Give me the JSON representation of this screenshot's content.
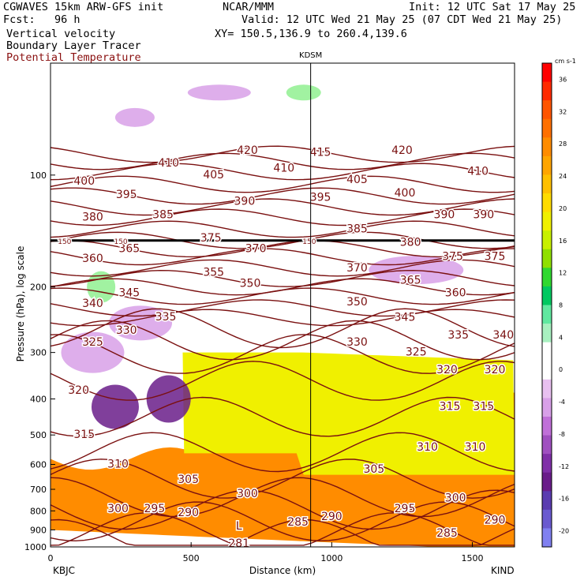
{
  "header": {
    "model": "CGWAVES 15km ARW-GFS init",
    "forecast": "Fcst:   96 h",
    "field1": "Vertical velocity",
    "field2": "Boundary Layer Tracer",
    "field3": "Potential Temperature",
    "center": "NCAR/MMM",
    "init": "Init: 12 UTC Sat 17 May 25",
    "valid": "Valid: 12 UTC Wed 21 May 25 (07 CDT Wed 21 May 25)",
    "xy": "XY= 150.5,136.9 to 260.4,139.6"
  },
  "colors": {
    "theta": "#7a1010",
    "tracer_low": "#ff8c00",
    "tracer_mid": "#f0f000",
    "upward": "#90f090",
    "downward": "#d8a0e8",
    "strong_down": "#6a1d8a"
  },
  "chart_data": {
    "type": "heatmap",
    "station_marker": "KDSM",
    "xlabel": "Distance (km)",
    "ylabel": "Pressure (hPa), log scale",
    "x_left_label": "KBJC",
    "x_right_label": "KIND",
    "xlim": [
      0,
      1650
    ],
    "xticks": [
      0,
      500,
      1000,
      1500
    ],
    "ylim": [
      1000,
      50
    ],
    "yscale": "log",
    "yticks": [
      100,
      200,
      300,
      400,
      500,
      600,
      700,
      800,
      900,
      1000
    ],
    "marker_x_km": 925,
    "colorbar": {
      "units": "cm s-1",
      "ticks": [
        36,
        32,
        28,
        24,
        20,
        16,
        12,
        8,
        4,
        0,
        -4,
        -8,
        -12,
        -16,
        -20
      ],
      "colors": [
        "#ff0000",
        "#ff2a00",
        "#ff5500",
        "#ff7000",
        "#ff8c00",
        "#ffa500",
        "#ffc000",
        "#ffdc00",
        "#f0f000",
        "#c8f000",
        "#90e000",
        "#30d830",
        "#00c860",
        "#60e8a0",
        "#a8f0c0",
        "#ffffff",
        "#ffffff",
        "#e8c0f0",
        "#d8a0e8",
        "#c070d8",
        "#a050c0",
        "#8030a8",
        "#6a1d8a",
        "#5a3cb0",
        "#6a5ad0",
        "#8080f0"
      ]
    },
    "isentropes": [
      {
        "value": 420,
        "p": 88
      },
      {
        "value": 415,
        "p": 92
      },
      {
        "value": 410,
        "p": 98
      },
      {
        "value": 405,
        "p": 106
      },
      {
        "value": 400,
        "p": 114
      },
      {
        "value": 395,
        "p": 122
      },
      {
        "value": 390,
        "p": 130
      },
      {
        "value": 385,
        "p": 140
      },
      {
        "value": 380,
        "p": 150
      },
      {
        "value": 375,
        "p": 158
      },
      {
        "value": 370,
        "p": 166
      },
      {
        "value": 365,
        "p": 178
      },
      {
        "value": 360,
        "p": 190
      },
      {
        "value": 355,
        "p": 200
      },
      {
        "value": 350,
        "p": 212
      },
      {
        "value": 345,
        "p": 228
      },
      {
        "value": 340,
        "p": 242
      },
      {
        "value": 335,
        "p": 260
      },
      {
        "value": 330,
        "p": 280
      },
      {
        "value": 325,
        "p": 305
      },
      {
        "value": 320,
        "p": 360
      },
      {
        "value": 315,
        "p": 450
      },
      {
        "value": 310,
        "p": 560
      },
      {
        "value": 305,
        "p": 660
      },
      {
        "value": 300,
        "p": 740
      },
      {
        "value": 295,
        "p": 800
      },
      {
        "value": 290,
        "p": 860
      },
      {
        "value": 285,
        "p": 920
      },
      {
        "value": 281,
        "p": 960
      }
    ],
    "contour_labels": [
      {
        "text": "420",
        "x": 700,
        "p": 86
      },
      {
        "text": "415",
        "x": 960,
        "p": 87
      },
      {
        "text": "420",
        "x": 1250,
        "p": 86
      },
      {
        "text": "410",
        "x": 420,
        "p": 93
      },
      {
        "text": "410",
        "x": 830,
        "p": 96
      },
      {
        "text": "410",
        "x": 1520,
        "p": 98
      },
      {
        "text": "405",
        "x": 580,
        "p": 100
      },
      {
        "text": "405",
        "x": 1090,
        "p": 103
      },
      {
        "text": "400",
        "x": 120,
        "p": 104
      },
      {
        "text": "400",
        "x": 1260,
        "p": 112
      },
      {
        "text": "395",
        "x": 270,
        "p": 113
      },
      {
        "text": "395",
        "x": 960,
        "p": 115
      },
      {
        "text": "390",
        "x": 690,
        "p": 118
      },
      {
        "text": "390",
        "x": 1400,
        "p": 128
      },
      {
        "text": "390",
        "x": 1540,
        "p": 128
      },
      {
        "text": "385",
        "x": 400,
        "p": 128
      },
      {
        "text": "385",
        "x": 1090,
        "p": 140
      },
      {
        "text": "380",
        "x": 150,
        "p": 130
      },
      {
        "text": "380",
        "x": 1280,
        "p": 152
      },
      {
        "text": "375",
        "x": 570,
        "p": 148
      },
      {
        "text": "375",
        "x": 1430,
        "p": 166
      },
      {
        "text": "375",
        "x": 1580,
        "p": 166
      },
      {
        "text": "370",
        "x": 730,
        "p": 158
      },
      {
        "text": "370",
        "x": 1090,
        "p": 178
      },
      {
        "text": "365",
        "x": 280,
        "p": 158
      },
      {
        "text": "365",
        "x": 1280,
        "p": 192
      },
      {
        "text": "360",
        "x": 150,
        "p": 168
      },
      {
        "text": "360",
        "x": 1440,
        "p": 208
      },
      {
        "text": "355",
        "x": 580,
        "p": 183
      },
      {
        "text": "350",
        "x": 710,
        "p": 196
      },
      {
        "text": "350",
        "x": 1090,
        "p": 220
      },
      {
        "text": "345",
        "x": 280,
        "p": 208
      },
      {
        "text": "345",
        "x": 1260,
        "p": 242
      },
      {
        "text": "340",
        "x": 150,
        "p": 222
      },
      {
        "text": "340",
        "x": 1610,
        "p": 270
      },
      {
        "text": "335",
        "x": 410,
        "p": 241
      },
      {
        "text": "335",
        "x": 1450,
        "p": 270
      },
      {
        "text": "330",
        "x": 270,
        "p": 262
      },
      {
        "text": "330",
        "x": 1090,
        "p": 282
      },
      {
        "text": "325",
        "x": 150,
        "p": 282
      },
      {
        "text": "325",
        "x": 1300,
        "p": 300
      },
      {
        "text": "320",
        "x": 100,
        "p": 380
      },
      {
        "text": "320",
        "x": 1410,
        "p": 335
      },
      {
        "text": "320",
        "x": 1580,
        "p": 335
      },
      {
        "text": "315",
        "x": 120,
        "p": 500
      },
      {
        "text": "315",
        "x": 1420,
        "p": 420
      },
      {
        "text": "315",
        "x": 1540,
        "p": 420
      },
      {
        "text": "310",
        "x": 240,
        "p": 600
      },
      {
        "text": "310",
        "x": 1340,
        "p": 540
      },
      {
        "text": "310",
        "x": 1510,
        "p": 540
      },
      {
        "text": "305",
        "x": 490,
        "p": 660
      },
      {
        "text": "305",
        "x": 1150,
        "p": 620
      },
      {
        "text": "300",
        "x": 240,
        "p": 790
      },
      {
        "text": "300",
        "x": 700,
        "p": 720
      },
      {
        "text": "300",
        "x": 1440,
        "p": 740
      },
      {
        "text": "295",
        "x": 370,
        "p": 790
      },
      {
        "text": "295",
        "x": 1260,
        "p": 790
      },
      {
        "text": "290",
        "x": 490,
        "p": 810
      },
      {
        "text": "290",
        "x": 1000,
        "p": 830
      },
      {
        "text": "290",
        "x": 1580,
        "p": 850
      },
      {
        "text": "285",
        "x": 880,
        "p": 860
      },
      {
        "text": "285",
        "x": 1410,
        "p": 920
      },
      {
        "text": "281",
        "x": 670,
        "p": 980
      },
      {
        "text": "L",
        "x": 670,
        "p": 880
      },
      {
        "text": "150",
        "x": 50,
        "p": 150
      },
      {
        "text": "150",
        "x": 250,
        "p": 150
      },
      {
        "text": "150",
        "x": 920,
        "p": 150
      }
    ],
    "reference_level_hpa": 150
  }
}
